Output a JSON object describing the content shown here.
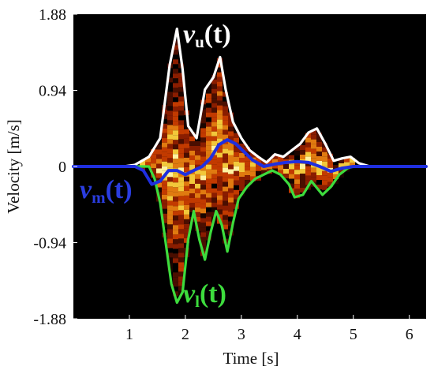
{
  "chart_data": {
    "type": "line",
    "xlabel": "Time [s]",
    "ylabel": "Velocity [m/s]",
    "xlim": [
      0,
      6.3
    ],
    "ylim": [
      -1.88,
      1.88
    ],
    "x_ticks": [
      1,
      2,
      3,
      4,
      5,
      6
    ],
    "y_ticks": [
      1.88,
      0.94,
      0,
      -0.94,
      -1.88
    ],
    "x_tick_labels": [
      "1",
      "2",
      "3",
      "4",
      "5",
      "6"
    ],
    "y_tick_labels": [
      "1.88",
      "0.94",
      "0",
      "-0.94",
      "-1.88"
    ],
    "grid": false,
    "background": "spectrogram",
    "series": [
      {
        "name": "v_u(t)",
        "color": "#ffffff",
        "points": [
          [
            0.0,
            0.0
          ],
          [
            0.9,
            0.0
          ],
          [
            1.1,
            0.02
          ],
          [
            1.35,
            0.12
          ],
          [
            1.55,
            0.35
          ],
          [
            1.72,
            1.25
          ],
          [
            1.85,
            1.7
          ],
          [
            1.95,
            1.2
          ],
          [
            2.05,
            0.5
          ],
          [
            2.2,
            0.35
          ],
          [
            2.35,
            0.95
          ],
          [
            2.5,
            1.1
          ],
          [
            2.62,
            1.35
          ],
          [
            2.72,
            0.95
          ],
          [
            2.85,
            0.55
          ],
          [
            3.0,
            0.35
          ],
          [
            3.15,
            0.2
          ],
          [
            3.3,
            0.12
          ],
          [
            3.45,
            0.05
          ],
          [
            3.6,
            0.15
          ],
          [
            3.75,
            0.12
          ],
          [
            3.9,
            0.2
          ],
          [
            4.05,
            0.28
          ],
          [
            4.2,
            0.42
          ],
          [
            4.35,
            0.47
          ],
          [
            4.5,
            0.28
          ],
          [
            4.65,
            0.07
          ],
          [
            4.8,
            0.1
          ],
          [
            4.95,
            0.12
          ],
          [
            5.1,
            0.04
          ],
          [
            5.3,
            0.0
          ],
          [
            6.3,
            0.0
          ]
        ]
      },
      {
        "name": "v_m(t)",
        "color": "#1f2fe0",
        "points": [
          [
            0.0,
            0.0
          ],
          [
            1.1,
            0.0
          ],
          [
            1.25,
            -0.05
          ],
          [
            1.4,
            -0.22
          ],
          [
            1.55,
            -0.18
          ],
          [
            1.7,
            -0.05
          ],
          [
            1.85,
            -0.05
          ],
          [
            2.0,
            -0.1
          ],
          [
            2.15,
            -0.05
          ],
          [
            2.3,
            0.0
          ],
          [
            2.45,
            0.1
          ],
          [
            2.6,
            0.27
          ],
          [
            2.75,
            0.33
          ],
          [
            2.9,
            0.28
          ],
          [
            3.05,
            0.18
          ],
          [
            3.2,
            0.08
          ],
          [
            3.4,
            0.0
          ],
          [
            3.6,
            0.03
          ],
          [
            3.8,
            0.05
          ],
          [
            4.0,
            0.06
          ],
          [
            4.2,
            0.05
          ],
          [
            4.4,
            0.0
          ],
          [
            4.6,
            -0.06
          ],
          [
            4.8,
            -0.02
          ],
          [
            5.0,
            0.0
          ],
          [
            6.3,
            0.0
          ]
        ]
      },
      {
        "name": "v_l(t)",
        "color": "#3ddc3d",
        "points": [
          [
            0.0,
            0.0
          ],
          [
            1.35,
            0.0
          ],
          [
            1.45,
            -0.15
          ],
          [
            1.55,
            -0.45
          ],
          [
            1.65,
            -0.95
          ],
          [
            1.75,
            -1.45
          ],
          [
            1.85,
            -1.68
          ],
          [
            1.95,
            -1.55
          ],
          [
            2.05,
            -0.9
          ],
          [
            2.15,
            -0.55
          ],
          [
            2.25,
            -0.9
          ],
          [
            2.35,
            -1.15
          ],
          [
            2.45,
            -0.82
          ],
          [
            2.55,
            -0.55
          ],
          [
            2.65,
            -0.72
          ],
          [
            2.75,
            -1.05
          ],
          [
            2.85,
            -0.7
          ],
          [
            2.95,
            -0.4
          ],
          [
            3.1,
            -0.25
          ],
          [
            3.25,
            -0.15
          ],
          [
            3.4,
            -0.1
          ],
          [
            3.55,
            -0.05
          ],
          [
            3.7,
            -0.1
          ],
          [
            3.85,
            -0.22
          ],
          [
            3.95,
            -0.38
          ],
          [
            4.1,
            -0.35
          ],
          [
            4.25,
            -0.18
          ],
          [
            4.45,
            -0.35
          ],
          [
            4.6,
            -0.25
          ],
          [
            4.75,
            -0.1
          ],
          [
            4.9,
            -0.02
          ],
          [
            5.0,
            0.0
          ],
          [
            6.3,
            0.0
          ]
        ]
      }
    ],
    "annotations": [
      {
        "series": "v_u(t)",
        "base": "v",
        "sub": "u",
        "suffix": "(t)",
        "color": "#ffffff"
      },
      {
        "series": "v_m(t)",
        "base": "v",
        "sub": "m",
        "suffix": "(t)",
        "color": "#2a3de0"
      },
      {
        "series": "v_l(t)",
        "base": "v",
        "sub": "l",
        "suffix": "(t)",
        "color": "#3ddc3d"
      }
    ],
    "heatmap_colors": [
      "#1a0500",
      "#4a0e00",
      "#8a1d00",
      "#c23a00",
      "#e07a10",
      "#f2c83a",
      "#fff2a0"
    ]
  }
}
